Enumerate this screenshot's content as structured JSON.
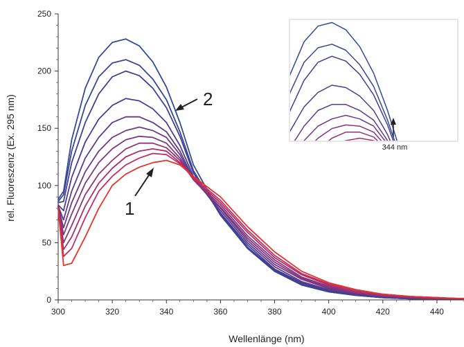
{
  "chart_data": {
    "type": "line",
    "title": "",
    "xlabel": "Wellenlänge (nm)",
    "ylabel": "rel. Fluoreszenz (Ex. 295 nm)",
    "xlim": [
      300,
      450
    ],
    "ylim": [
      0,
      250
    ],
    "xticks": [
      300,
      320,
      340,
      360,
      380,
      400,
      420,
      440
    ],
    "yticks": [
      0,
      50,
      100,
      150,
      200,
      250
    ],
    "grid": false,
    "legend": "none",
    "x": [
      300,
      302,
      305,
      310,
      315,
      320,
      325,
      330,
      335,
      340,
      345,
      350,
      360,
      370,
      380,
      390,
      400,
      410,
      420,
      430,
      440,
      450
    ],
    "series": [
      {
        "color": "#e8322b",
        "values": [
          80,
          30,
          32,
          55,
          80,
          100,
          110,
          116,
          120,
          122,
          118,
          108,
          90,
          64,
          42,
          25,
          15,
          9,
          5,
          3,
          2,
          1
        ]
      },
      {
        "color": "#c22f63",
        "values": [
          80,
          38,
          45,
          72,
          95,
          108,
          118,
          124,
          128,
          127,
          119,
          107,
          87,
          61,
          39,
          23,
          14,
          8,
          5,
          3,
          2,
          1
        ]
      },
      {
        "color": "#a8306f",
        "values": [
          80,
          44,
          55,
          82,
          102,
          115,
          125,
          130,
          132,
          130,
          120,
          106,
          85,
          59,
          37,
          22,
          13,
          7,
          4,
          3,
          2,
          1
        ]
      },
      {
        "color": "#923378",
        "values": [
          81,
          50,
          65,
          92,
          110,
          122,
          132,
          137,
          137,
          133,
          122,
          105,
          83,
          56,
          35,
          20,
          12,
          7,
          4,
          2,
          1,
          1
        ]
      },
      {
        "color": "#80367f",
        "values": [
          81,
          57,
          75,
          102,
          120,
          132,
          140,
          143,
          142,
          137,
          124,
          105,
          81,
          54,
          33,
          19,
          11,
          6,
          3,
          2,
          1,
          1
        ]
      },
      {
        "color": "#6d3987",
        "values": [
          82,
          63,
          85,
          112,
          130,
          142,
          148,
          151,
          148,
          142,
          127,
          105,
          80,
          52,
          31,
          18,
          10,
          6,
          3,
          2,
          1,
          1
        ]
      },
      {
        "color": "#5a3b8c",
        "values": [
          82,
          70,
          95,
          124,
          142,
          155,
          160,
          160,
          155,
          147,
          130,
          106,
          78,
          50,
          29,
          16,
          9,
          5,
          3,
          2,
          1,
          1
        ]
      },
      {
        "color": "#4a3d90",
        "values": [
          83,
          78,
          107,
          138,
          158,
          170,
          176,
          174,
          167,
          155,
          135,
          108,
          76,
          48,
          27,
          15,
          8,
          5,
          3,
          2,
          1,
          1
        ]
      },
      {
        "color": "#3f4093",
        "values": [
          85,
          86,
          120,
          155,
          180,
          195,
          200,
          196,
          185,
          168,
          143,
          111,
          75,
          46,
          26,
          14,
          8,
          4,
          2,
          1,
          1,
          1
        ]
      },
      {
        "color": "#394496",
        "values": [
          86,
          92,
          130,
          170,
          195,
          207,
          210,
          205,
          193,
          175,
          147,
          113,
          74,
          45,
          25,
          13,
          7,
          4,
          2,
          1,
          1,
          1
        ]
      },
      {
        "color": "#34489a",
        "values": [
          88,
          95,
          140,
          185,
          212,
          225,
          228,
          222,
          208,
          186,
          155,
          118,
          75,
          45,
          25,
          13,
          7,
          4,
          2,
          1,
          1,
          1
        ]
      }
    ],
    "annotations": [
      {
        "text": "1",
        "points_to": [
          340,
          122
        ]
      },
      {
        "text": "2",
        "points_to": [
          345,
          178
        ]
      }
    ],
    "inset": {
      "label": "344 nm",
      "xlim": [
        310,
        370
      ],
      "ylim": [
        130,
        230
      ],
      "marker_x": 344
    }
  }
}
